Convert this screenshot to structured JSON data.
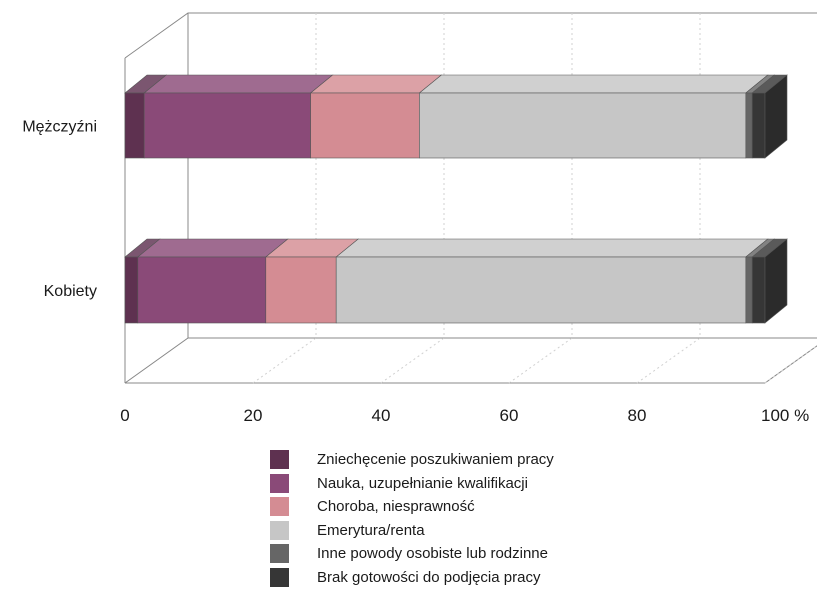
{
  "chart_data": {
    "type": "bar",
    "orientation": "horizontal",
    "stacked": true,
    "style": "3d",
    "categories": [
      "Mężczyźni",
      "Kobiety"
    ],
    "series": [
      {
        "name": "Zniechęcenie poszukiwaniem pracy",
        "color": "#5e3150",
        "values": [
          3,
          2
        ]
      },
      {
        "name": "Nauka, uzupełnianie kwalifikacji",
        "color": "#8a4a78",
        "values": [
          26,
          20
        ]
      },
      {
        "name": "Choroba, niesprawność",
        "color": "#d48c93",
        "values": [
          17,
          11
        ]
      },
      {
        "name": "Emerytura/renta",
        "color": "#c6c6c6",
        "values": [
          51,
          64
        ]
      },
      {
        "name": "Inne powody osobiste lub rodzinne",
        "color": "#666666",
        "values": [
          1,
          1
        ]
      },
      {
        "name": "Brak gotowości do podjęcia pracy",
        "color": "#363636",
        "values": [
          2,
          2
        ]
      }
    ],
    "xlim": [
      0,
      100
    ],
    "xticks": [
      "0",
      "20",
      "40",
      "60",
      "80",
      "100 %"
    ],
    "grid": true,
    "legend_position": "bottom"
  }
}
